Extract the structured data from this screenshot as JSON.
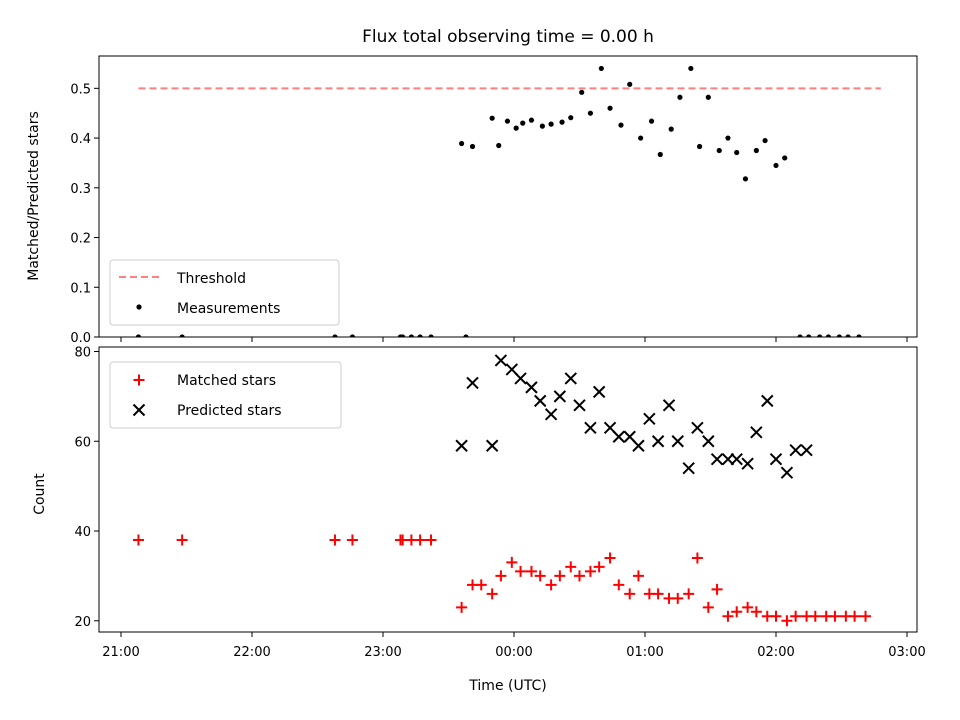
{
  "chart_data": [
    {
      "type": "scatter",
      "title": "Flux total observing time = 0.00 h",
      "xlabel": "",
      "ylabel": "Matched/Predicted stars",
      "ylim": [
        0,
        0.565
      ],
      "yticks": [
        "0.0",
        "0.1",
        "0.2",
        "0.3",
        "0.4",
        "0.5"
      ],
      "legend_position": "lower-left",
      "threshold": {
        "name": "Threshold",
        "value": 0.5,
        "x_start": "21:08",
        "x_end": "02:48",
        "color": "#ff7f7f"
      },
      "series": [
        {
          "name": "Measurements",
          "color": "#000000",
          "points": [
            [
              "21:08",
              0.0
            ],
            [
              "21:28",
              0.0
            ],
            [
              "22:38",
              0.0
            ],
            [
              "22:46",
              0.0
            ],
            [
              "23:08",
              0.0
            ],
            [
              "23:09",
              0.0
            ],
            [
              "23:13",
              0.0
            ],
            [
              "23:17",
              0.0
            ],
            [
              "23:22",
              0.0
            ],
            [
              "23:38",
              0.0
            ],
            [
              "23:36",
              0.389
            ],
            [
              "23:41",
              0.383
            ],
            [
              "23:50",
              0.44
            ],
            [
              "23:53",
              0.385
            ],
            [
              "23:57",
              0.434
            ],
            [
              "00:01",
              0.42
            ],
            [
              "00:04",
              0.43
            ],
            [
              "00:08",
              0.436
            ],
            [
              "00:13",
              0.424
            ],
            [
              "00:17",
              0.428
            ],
            [
              "00:22",
              0.432
            ],
            [
              "00:26",
              0.441
            ],
            [
              "00:31",
              0.492
            ],
            [
              "00:35",
              0.45
            ],
            [
              "00:40",
              0.54
            ],
            [
              "00:44",
              0.46
            ],
            [
              "00:49",
              0.426
            ],
            [
              "00:53",
              0.508
            ],
            [
              "00:58",
              0.4
            ],
            [
              "01:03",
              0.434
            ],
            [
              "01:07",
              0.367
            ],
            [
              "01:12",
              0.418
            ],
            [
              "01:16",
              0.482
            ],
            [
              "01:21",
              0.54
            ],
            [
              "01:25",
              0.383
            ],
            [
              "01:29",
              0.482
            ],
            [
              "01:34",
              0.375
            ],
            [
              "01:38",
              0.4
            ],
            [
              "01:42",
              0.371
            ],
            [
              "01:46",
              0.318
            ],
            [
              "01:51",
              0.375
            ],
            [
              "01:55",
              0.395
            ],
            [
              "02:00",
              0.345
            ],
            [
              "02:04",
              0.36
            ],
            [
              "02:11",
              0.0
            ],
            [
              "02:15",
              0.0
            ],
            [
              "02:20",
              0.0
            ],
            [
              "02:24",
              0.0
            ],
            [
              "02:29",
              0.0
            ],
            [
              "02:33",
              0.0
            ],
            [
              "02:38",
              0.0
            ]
          ]
        }
      ]
    },
    {
      "type": "scatter",
      "title": "",
      "xlabel": "Time (UTC)",
      "ylabel": "Count",
      "ylim": [
        17.5,
        81
      ],
      "yticks": [
        "20",
        "40",
        "60",
        "80"
      ],
      "xticks": [
        "21:00",
        "22:00",
        "23:00",
        "00:00",
        "01:00",
        "02:00",
        "03:00"
      ],
      "legend_position": "upper-left",
      "series": [
        {
          "name": "Matched stars",
          "marker": "plus",
          "color": "#ff0000",
          "points": [
            [
              "21:08",
              38
            ],
            [
              "21:28",
              38
            ],
            [
              "22:38",
              38
            ],
            [
              "22:46",
              38
            ],
            [
              "23:08",
              38
            ],
            [
              "23:09",
              38
            ],
            [
              "23:13",
              38
            ],
            [
              "23:17",
              38
            ],
            [
              "23:22",
              38
            ],
            [
              "23:36",
              23
            ],
            [
              "23:41",
              28
            ],
            [
              "23:45",
              28
            ],
            [
              "23:50",
              26
            ],
            [
              "23:54",
              30
            ],
            [
              "23:59",
              33
            ],
            [
              "00:03",
              31
            ],
            [
              "00:08",
              31
            ],
            [
              "00:12",
              30
            ],
            [
              "00:17",
              28
            ],
            [
              "00:21",
              30
            ],
            [
              "00:26",
              32
            ],
            [
              "00:30",
              30
            ],
            [
              "00:35",
              31
            ],
            [
              "00:39",
              32
            ],
            [
              "00:44",
              34
            ],
            [
              "00:48",
              28
            ],
            [
              "00:53",
              26
            ],
            [
              "00:57",
              30
            ],
            [
              "01:02",
              26
            ],
            [
              "01:06",
              26
            ],
            [
              "01:11",
              25
            ],
            [
              "01:15",
              25
            ],
            [
              "01:20",
              26
            ],
            [
              "01:24",
              34
            ],
            [
              "01:29",
              23
            ],
            [
              "01:33",
              27
            ],
            [
              "01:38",
              21
            ],
            [
              "01:42",
              22
            ],
            [
              "01:47",
              23
            ],
            [
              "01:51",
              22
            ],
            [
              "01:56",
              21
            ],
            [
              "02:00",
              21
            ],
            [
              "02:05",
              20
            ],
            [
              "02:09",
              21
            ],
            [
              "02:14",
              21
            ],
            [
              "02:18",
              21
            ],
            [
              "02:23",
              21
            ],
            [
              "02:27",
              21
            ],
            [
              "02:32",
              21
            ],
            [
              "02:36",
              21
            ],
            [
              "02:41",
              21
            ]
          ]
        },
        {
          "name": "Predicted stars",
          "marker": "x",
          "color": "#000000",
          "points": [
            [
              "23:36",
              59
            ],
            [
              "23:41",
              73
            ],
            [
              "23:50",
              59
            ],
            [
              "23:54",
              78
            ],
            [
              "23:59",
              76
            ],
            [
              "00:03",
              74
            ],
            [
              "00:08",
              72
            ],
            [
              "00:12",
              69
            ],
            [
              "00:17",
              66
            ],
            [
              "00:21",
              70
            ],
            [
              "00:26",
              74
            ],
            [
              "00:30",
              68
            ],
            [
              "00:35",
              63
            ],
            [
              "00:39",
              71
            ],
            [
              "00:44",
              63
            ],
            [
              "00:48",
              61
            ],
            [
              "00:53",
              61
            ],
            [
              "00:57",
              59
            ],
            [
              "01:02",
              65
            ],
            [
              "01:06",
              60
            ],
            [
              "01:11",
              68
            ],
            [
              "01:15",
              60
            ],
            [
              "01:20",
              54
            ],
            [
              "01:24",
              63
            ],
            [
              "01:29",
              60
            ],
            [
              "01:33",
              56
            ],
            [
              "01:38",
              56
            ],
            [
              "01:42",
              56
            ],
            [
              "01:47",
              55
            ],
            [
              "01:51",
              62
            ],
            [
              "01:56",
              69
            ],
            [
              "02:00",
              56
            ],
            [
              "02:05",
              53
            ],
            [
              "02:09",
              58
            ],
            [
              "02:14",
              58
            ]
          ]
        }
      ]
    }
  ]
}
